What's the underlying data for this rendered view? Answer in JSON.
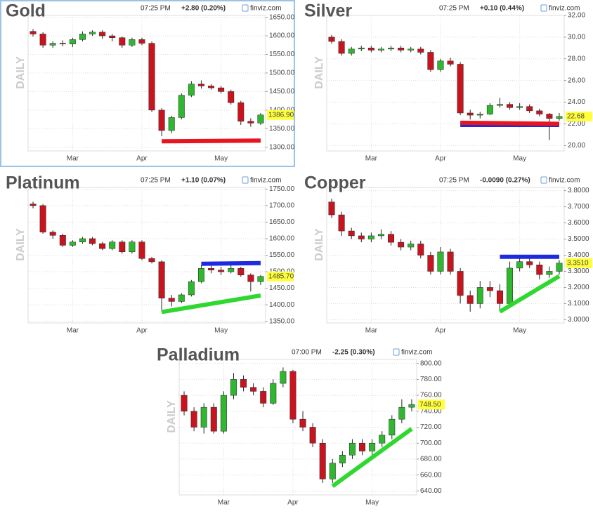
{
  "chart_data": [
    {
      "type": "candlestick",
      "title": "Gold",
      "time": "07:25 PM",
      "change": "+2.80 (0.20%)",
      "change_color": "#1a9a1a",
      "source": "finviz.com",
      "ylabel": "DAILY",
      "last_label": "1386.90",
      "up_color": "#2fb82f",
      "down_color": "#c8141e",
      "border": true,
      "xlim": [
        -0.5,
        23.5
      ],
      "xticks": [
        {
          "value": 4,
          "label": "Mar"
        },
        {
          "value": 11,
          "label": "Apr"
        },
        {
          "value": 19,
          "label": "May"
        }
      ],
      "ylim": [
        1290,
        1655
      ],
      "yticks": [
        {
          "value": 1300,
          "label": "1300.00"
        },
        {
          "value": 1350,
          "label": "1350.00"
        },
        {
          "value": 1400,
          "label": "1400.00"
        },
        {
          "value": 1450,
          "label": "1450.00"
        },
        {
          "value": 1500,
          "label": "1500.00"
        },
        {
          "value": 1550,
          "label": "1550.00"
        },
        {
          "value": 1600,
          "label": "1600.00"
        },
        {
          "value": 1650,
          "label": "1650.00"
        }
      ],
      "open": [
        1612,
        1605,
        1575,
        1580,
        1578,
        1590,
        1605,
        1610,
        1600,
        1595,
        1575,
        1590,
        1580,
        1400,
        1345,
        1380,
        1440,
        1470,
        1465,
        1460,
        1450,
        1420,
        1370,
        1365
      ],
      "high": [
        1618,
        1610,
        1585,
        1588,
        1595,
        1612,
        1615,
        1615,
        1605,
        1598,
        1595,
        1595,
        1585,
        1405,
        1385,
        1445,
        1478,
        1480,
        1470,
        1465,
        1455,
        1425,
        1378,
        1392
      ],
      "low": [
        1598,
        1568,
        1568,
        1572,
        1570,
        1585,
        1600,
        1592,
        1585,
        1568,
        1570,
        1575,
        1395,
        1330,
        1338,
        1375,
        1435,
        1458,
        1455,
        1445,
        1415,
        1360,
        1355,
        1360
      ],
      "close": [
        1605,
        1575,
        1580,
        1578,
        1590,
        1605,
        1610,
        1600,
        1595,
        1575,
        1590,
        1580,
        1400,
        1345,
        1380,
        1440,
        1470,
        1465,
        1460,
        1450,
        1420,
        1370,
        1365,
        1386.9
      ],
      "drawn_lines": [
        {
          "color": "#e8141e",
          "x": [
            13,
            23
          ],
          "y": [
            1316,
            1318
          ]
        }
      ]
    },
    {
      "type": "candlestick",
      "title": "Silver",
      "time": "07:25 PM",
      "change": "+0.10 (0.44%)",
      "change_color": "#1a9a1a",
      "source": "finviz.com",
      "ylabel": "DAILY",
      "last_label": "22.68",
      "up_color": "#2fb82f",
      "down_color": "#c8141e",
      "border": false,
      "xlim": [
        -0.5,
        23.5
      ],
      "xticks": [
        {
          "value": 4,
          "label": "Mar"
        },
        {
          "value": 11,
          "label": "Apr"
        },
        {
          "value": 19,
          "label": "May"
        }
      ],
      "ylim": [
        19.5,
        32
      ],
      "yticks": [
        {
          "value": 20,
          "label": "20.00"
        },
        {
          "value": 22,
          "label": "22.00"
        },
        {
          "value": 24,
          "label": "24.00"
        },
        {
          "value": 26,
          "label": "26.00"
        },
        {
          "value": 28,
          "label": "28.00"
        },
        {
          "value": 30,
          "label": "30.00"
        },
        {
          "value": 32,
          "label": "32.00"
        }
      ],
      "open": [
        30.0,
        29.6,
        28.5,
        28.9,
        29.0,
        28.8,
        28.9,
        29.0,
        28.8,
        28.9,
        28.6,
        27.0,
        27.8,
        27.5,
        23.0,
        22.8,
        22.9,
        23.7,
        23.8,
        23.5,
        23.6,
        23.2,
        22.9,
        22.5
      ],
      "high": [
        30.2,
        29.8,
        29.1,
        29.2,
        29.2,
        29.1,
        29.2,
        29.2,
        29.1,
        29.1,
        28.8,
        28.0,
        28.1,
        27.7,
        23.3,
        23.1,
        23.9,
        24.4,
        24.0,
        23.9,
        23.8,
        23.4,
        23.0,
        23.0
      ],
      "low": [
        29.4,
        28.3,
        28.3,
        28.7,
        28.6,
        28.6,
        28.7,
        28.6,
        28.6,
        28.4,
        26.8,
        26.8,
        27.3,
        22.8,
        22.4,
        22.5,
        22.8,
        23.5,
        23.3,
        23.3,
        23.0,
        22.7,
        20.5,
        22.3
      ],
      "close": [
        29.6,
        28.5,
        28.9,
        29.0,
        28.8,
        28.9,
        29.0,
        28.8,
        28.9,
        28.6,
        27.0,
        27.8,
        27.5,
        23.0,
        22.8,
        22.9,
        23.7,
        23.8,
        23.5,
        23.6,
        23.2,
        22.9,
        22.5,
        22.68
      ],
      "drawn_lines": [
        {
          "color": "#1e2ae0",
          "x": [
            13,
            23
          ],
          "y": [
            21.9,
            21.9
          ]
        },
        {
          "color": "#e8141e",
          "x": [
            13,
            23
          ],
          "y": [
            22.1,
            22.0
          ]
        }
      ]
    },
    {
      "type": "candlestick",
      "title": "Platinum",
      "time": "07:25 PM",
      "change": "+1.10 (0.07%)",
      "change_color": "#1a9a1a",
      "source": "finviz.com",
      "ylabel": "DAILY",
      "last_label": "1485.70",
      "up_color": "#2fb82f",
      "down_color": "#c8141e",
      "border": false,
      "xlim": [
        -0.5,
        23.5
      ],
      "xticks": [
        {
          "value": 4,
          "label": "Mar"
        },
        {
          "value": 11,
          "label": "Apr"
        },
        {
          "value": 19,
          "label": "May"
        }
      ],
      "ylim": [
        1345,
        1755
      ],
      "yticks": [
        {
          "value": 1350,
          "label": "1350.00"
        },
        {
          "value": 1400,
          "label": "1400.00"
        },
        {
          "value": 1450,
          "label": "1450.00"
        },
        {
          "value": 1500,
          "label": "1500.00"
        },
        {
          "value": 1550,
          "label": "1550.00"
        },
        {
          "value": 1600,
          "label": "1600.00"
        },
        {
          "value": 1650,
          "label": "1650.00"
        },
        {
          "value": 1700,
          "label": "1700.00"
        },
        {
          "value": 1750,
          "label": "1750.00"
        }
      ],
      "open": [
        1705,
        1700,
        1620,
        1610,
        1580,
        1590,
        1600,
        1585,
        1570,
        1590,
        1560,
        1590,
        1540,
        1530,
        1420,
        1410,
        1430,
        1470,
        1510,
        1505,
        1500,
        1510,
        1490,
        1470
      ],
      "high": [
        1712,
        1705,
        1625,
        1615,
        1595,
        1605,
        1605,
        1590,
        1595,
        1595,
        1595,
        1595,
        1545,
        1535,
        1430,
        1435,
        1475,
        1520,
        1520,
        1515,
        1520,
        1515,
        1495,
        1490
      ],
      "low": [
        1692,
        1615,
        1600,
        1575,
        1575,
        1585,
        1580,
        1565,
        1565,
        1555,
        1555,
        1535,
        1525,
        1380,
        1395,
        1405,
        1425,
        1465,
        1495,
        1490,
        1495,
        1485,
        1440,
        1460
      ],
      "close": [
        1700,
        1620,
        1610,
        1580,
        1590,
        1600,
        1585,
        1570,
        1590,
        1560,
        1590,
        1540,
        1530,
        1420,
        1410,
        1430,
        1470,
        1510,
        1505,
        1500,
        1510,
        1490,
        1470,
        1485.7
      ],
      "drawn_lines": [
        {
          "color": "#1e2ae0",
          "x": [
            17,
            23
          ],
          "y": [
            1524,
            1526
          ]
        },
        {
          "color": "#2fd82f",
          "x": [
            13,
            23
          ],
          "y": [
            1378,
            1428
          ]
        }
      ]
    },
    {
      "type": "candlestick",
      "title": "Copper",
      "time": "07:25 PM",
      "change": "-0.0090 (0.27%)",
      "change_color": "#d01c1c",
      "source": "finviz.com",
      "ylabel": "DAILY",
      "last_label": "3.3510",
      "up_color": "#2fb82f",
      "down_color": "#c8141e",
      "border": false,
      "xlim": [
        -0.5,
        23.5
      ],
      "xticks": [
        {
          "value": 4,
          "label": "Mar"
        },
        {
          "value": 11,
          "label": "Apr"
        },
        {
          "value": 19,
          "label": "May"
        }
      ],
      "ylim": [
        2.98,
        3.82
      ],
      "yticks": [
        {
          "value": 3.0,
          "label": "3.0000"
        },
        {
          "value": 3.1,
          "label": "3.1000"
        },
        {
          "value": 3.2,
          "label": "3.2000"
        },
        {
          "value": 3.3,
          "label": "3.3000"
        },
        {
          "value": 3.4,
          "label": "3.4000"
        },
        {
          "value": 3.5,
          "label": "3.5000"
        },
        {
          "value": 3.6,
          "label": "3.6000"
        },
        {
          "value": 3.7,
          "label": "3.7000"
        },
        {
          "value": 3.8,
          "label": "3.8000"
        }
      ],
      "open": [
        3.73,
        3.65,
        3.55,
        3.52,
        3.5,
        3.52,
        3.53,
        3.48,
        3.45,
        3.47,
        3.4,
        3.3,
        3.42,
        3.3,
        3.15,
        3.1,
        3.2,
        3.18,
        3.1,
        3.32,
        3.36,
        3.34,
        3.28,
        3.3
      ],
      "high": [
        3.75,
        3.67,
        3.57,
        3.54,
        3.54,
        3.56,
        3.55,
        3.5,
        3.49,
        3.49,
        3.42,
        3.45,
        3.44,
        3.32,
        3.18,
        3.24,
        3.24,
        3.22,
        3.36,
        3.38,
        3.38,
        3.36,
        3.33,
        3.37
      ],
      "low": [
        3.63,
        3.52,
        3.5,
        3.48,
        3.48,
        3.5,
        3.46,
        3.43,
        3.43,
        3.38,
        3.28,
        3.28,
        3.28,
        3.1,
        3.05,
        3.07,
        3.14,
        3.05,
        3.08,
        3.3,
        3.32,
        3.25,
        3.26,
        3.28
      ],
      "close": [
        3.65,
        3.55,
        3.52,
        3.5,
        3.52,
        3.53,
        3.48,
        3.45,
        3.47,
        3.4,
        3.3,
        3.42,
        3.3,
        3.15,
        3.1,
        3.2,
        3.18,
        3.1,
        3.32,
        3.36,
        3.34,
        3.28,
        3.3,
        3.351
      ],
      "drawn_lines": [
        {
          "color": "#1e2ae0",
          "x": [
            17,
            23
          ],
          "y": [
            3.39,
            3.39
          ]
        },
        {
          "color": "#2fd82f",
          "x": [
            17,
            23
          ],
          "y": [
            3.05,
            3.27
          ]
        }
      ]
    },
    {
      "type": "candlestick",
      "title": "Palladium",
      "time": "07:00 PM",
      "change": "-2.25 (0.30%)",
      "change_color": "#d01c1c",
      "source": "finviz.com",
      "ylabel": "DAILY",
      "last_label": "748.50",
      "up_color": "#2fb82f",
      "down_color": "#c8141e",
      "border": false,
      "xlim": [
        -0.5,
        23.5
      ],
      "xticks": [
        {
          "value": 4,
          "label": "Mar"
        },
        {
          "value": 11,
          "label": "Apr"
        },
        {
          "value": 19,
          "label": "May"
        }
      ],
      "ylim": [
        635,
        805
      ],
      "yticks": [
        {
          "value": 640,
          "label": "640.00"
        },
        {
          "value": 660,
          "label": "660.00"
        },
        {
          "value": 680,
          "label": "680.00"
        },
        {
          "value": 700,
          "label": "700.00"
        },
        {
          "value": 720,
          "label": "720.00"
        },
        {
          "value": 740,
          "label": "740.00"
        },
        {
          "value": 760,
          "label": "760.00"
        },
        {
          "value": 780,
          "label": "780.00"
        },
        {
          "value": 800,
          "label": "800.00"
        }
      ],
      "open": [
        760,
        740,
        720,
        745,
        715,
        760,
        780,
        770,
        765,
        750,
        775,
        790,
        730,
        720,
        700,
        655,
        675,
        685,
        700,
        690,
        700,
        710,
        730,
        745
      ],
      "high": [
        765,
        745,
        750,
        750,
        765,
        788,
        785,
        775,
        770,
        780,
        795,
        792,
        740,
        725,
        705,
        680,
        690,
        705,
        705,
        705,
        715,
        735,
        755,
        755
      ],
      "low": [
        735,
        715,
        712,
        712,
        712,
        755,
        765,
        760,
        745,
        748,
        770,
        725,
        715,
        695,
        650,
        650,
        670,
        680,
        685,
        685,
        695,
        705,
        725,
        740
      ],
      "close": [
        740,
        720,
        745,
        715,
        760,
        780,
        770,
        765,
        750,
        775,
        790,
        730,
        720,
        700,
        655,
        675,
        685,
        700,
        690,
        700,
        710,
        730,
        745,
        748.5
      ],
      "drawn_lines": [
        {
          "color": "#2fd82f",
          "x": [
            15,
            23
          ],
          "y": [
            646,
            718
          ]
        }
      ]
    }
  ]
}
